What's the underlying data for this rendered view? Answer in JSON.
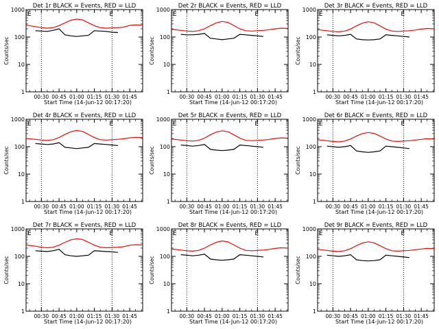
{
  "colors": {
    "events": "#000000",
    "lld": "#ff0000",
    "axis": "#000000",
    "marker": "#000000"
  },
  "common": {
    "ylabel": "Counts/sec",
    "xlabel": "Start Time (14-Jun-12 00:17:20)",
    "xticks": [
      "00:30",
      "00:45",
      "01:00",
      "01:15",
      "01:30",
      "01:45"
    ],
    "yticks": [
      "1",
      "10",
      "100",
      "1000"
    ],
    "scale": "log",
    "ylim": [
      1,
      1000
    ],
    "xlim_minutes": [
      17,
      116
    ],
    "xtick_minutes": [
      30,
      45,
      60,
      75,
      90,
      105
    ],
    "dotted_line_minutes": [
      30,
      90
    ],
    "edge_label": "E"
  },
  "chart_data": [
    {
      "type": "line",
      "title": "Det 1r BLACK = Events, RED = LLD",
      "series": [
        {
          "key": "events",
          "x": [
            25,
            30,
            35,
            40,
            45,
            50,
            55,
            60,
            65,
            70,
            75,
            80,
            85,
            90,
            95
          ],
          "y": [
            170,
            165,
            160,
            175,
            200,
            120,
            110,
            105,
            110,
            115,
            170,
            165,
            160,
            150,
            145
          ]
        },
        {
          "key": "lld",
          "x": [
            17,
            25,
            30,
            35,
            40,
            45,
            50,
            55,
            60,
            65,
            70,
            75,
            80,
            85,
            90,
            95,
            100,
            105,
            110,
            116
          ],
          "y": [
            270,
            240,
            220,
            210,
            220,
            260,
            330,
            410,
            450,
            420,
            330,
            260,
            220,
            210,
            215,
            220,
            230,
            265,
            275,
            270
          ]
        }
      ]
    },
    {
      "type": "line",
      "title": "Det 2r BLACK = Events, RED = LLD",
      "series": [
        {
          "key": "events",
          "x": [
            25,
            30,
            35,
            40,
            45,
            50,
            55,
            60,
            65,
            70,
            75,
            80,
            85,
            90,
            95
          ],
          "y": [
            125,
            120,
            120,
            125,
            135,
            90,
            85,
            80,
            85,
            90,
            125,
            120,
            115,
            110,
            105
          ]
        },
        {
          "key": "lld",
          "x": [
            17,
            25,
            30,
            35,
            40,
            45,
            50,
            55,
            60,
            65,
            70,
            75,
            80,
            85,
            90,
            95,
            100,
            105,
            110,
            116
          ],
          "y": [
            190,
            175,
            165,
            160,
            170,
            200,
            260,
            330,
            370,
            340,
            260,
            200,
            170,
            165,
            170,
            175,
            185,
            200,
            210,
            205
          ]
        }
      ]
    },
    {
      "type": "line",
      "title": "Det 3r BLACK = Events, RED = LLD",
      "series": [
        {
          "key": "events",
          "x": [
            25,
            30,
            35,
            40,
            45,
            50,
            55,
            60,
            65,
            70,
            75,
            80,
            85,
            90,
            95
          ],
          "y": [
            120,
            115,
            110,
            115,
            125,
            85,
            80,
            78,
            80,
            85,
            120,
            115,
            110,
            105,
            100
          ]
        },
        {
          "key": "lld",
          "x": [
            17,
            25,
            30,
            35,
            40,
            45,
            50,
            55,
            60,
            65,
            70,
            75,
            80,
            85,
            90,
            95,
            100,
            105,
            110,
            116
          ],
          "y": [
            185,
            170,
            160,
            155,
            165,
            195,
            255,
            320,
            360,
            330,
            255,
            195,
            165,
            160,
            165,
            170,
            180,
            195,
            205,
            200
          ]
        }
      ]
    },
    {
      "type": "line",
      "title": "Det 4r BLACK = Events, RED = LLD",
      "series": [
        {
          "key": "events",
          "x": [
            25,
            30,
            35,
            40,
            45,
            50,
            55,
            60,
            65,
            70,
            75,
            80,
            85,
            90,
            95
          ],
          "y": [
            130,
            125,
            120,
            125,
            140,
            95,
            90,
            85,
            90,
            95,
            130,
            125,
            120,
            115,
            110
          ]
        },
        {
          "key": "lld",
          "x": [
            17,
            25,
            30,
            35,
            40,
            45,
            50,
            55,
            60,
            65,
            70,
            75,
            80,
            85,
            90,
            95,
            100,
            105,
            110,
            116
          ],
          "y": [
            200,
            185,
            175,
            170,
            180,
            215,
            280,
            350,
            390,
            360,
            280,
            215,
            180,
            175,
            180,
            185,
            195,
            210,
            220,
            215
          ]
        }
      ]
    },
    {
      "type": "line",
      "title": "Det 5r BLACK = Events, RED = LLD",
      "series": [
        {
          "key": "events",
          "x": [
            25,
            30,
            35,
            40,
            45,
            50,
            55,
            60,
            65,
            70,
            75,
            80,
            85,
            90,
            95
          ],
          "y": [
            115,
            110,
            105,
            110,
            120,
            80,
            75,
            72,
            75,
            80,
            115,
            110,
            105,
            100,
            95
          ]
        },
        {
          "key": "lld",
          "x": [
            17,
            25,
            30,
            35,
            40,
            45,
            50,
            55,
            60,
            65,
            70,
            75,
            80,
            85,
            90,
            95,
            100,
            105,
            110,
            116
          ],
          "y": [
            190,
            175,
            165,
            160,
            170,
            205,
            270,
            340,
            380,
            350,
            270,
            205,
            170,
            165,
            170,
            175,
            185,
            200,
            210,
            205
          ]
        }
      ]
    },
    {
      "type": "line",
      "title": "Det 6r BLACK = Events, RED = LLD",
      "series": [
        {
          "key": "events",
          "x": [
            25,
            30,
            35,
            40,
            45,
            50,
            55,
            60,
            65,
            70,
            75,
            80,
            85,
            90,
            95
          ],
          "y": [
            105,
            100,
            95,
            100,
            110,
            70,
            65,
            62,
            65,
            70,
            105,
            100,
            95,
            90,
            85
          ]
        },
        {
          "key": "lld",
          "x": [
            17,
            25,
            30,
            35,
            40,
            45,
            50,
            55,
            60,
            65,
            70,
            75,
            80,
            85,
            90,
            95,
            100,
            105,
            110,
            116
          ],
          "y": [
            180,
            165,
            155,
            150,
            160,
            190,
            245,
            300,
            330,
            305,
            245,
            190,
            160,
            155,
            160,
            165,
            175,
            185,
            195,
            190
          ]
        }
      ]
    },
    {
      "type": "line",
      "title": "Det 7r BLACK = Events, RED = LLD",
      "series": [
        {
          "key": "events",
          "x": [
            25,
            30,
            35,
            40,
            45,
            50,
            55,
            60,
            65,
            70,
            75,
            80,
            85,
            90,
            95
          ],
          "y": [
            160,
            155,
            150,
            160,
            180,
            115,
            105,
            100,
            105,
            110,
            160,
            155,
            150,
            145,
            140
          ]
        },
        {
          "key": "lld",
          "x": [
            17,
            25,
            30,
            35,
            40,
            45,
            50,
            55,
            60,
            65,
            70,
            75,
            80,
            85,
            90,
            95,
            100,
            105,
            110,
            116
          ],
          "y": [
            260,
            235,
            215,
            205,
            215,
            255,
            325,
            400,
            440,
            410,
            325,
            255,
            215,
            205,
            210,
            215,
            225,
            255,
            265,
            260
          ]
        }
      ]
    },
    {
      "type": "line",
      "title": "Det 8r BLACK = Events, RED = LLD",
      "series": [
        {
          "key": "events",
          "x": [
            25,
            30,
            35,
            40,
            45,
            50,
            55,
            60,
            65,
            70,
            75,
            80,
            85,
            90,
            95
          ],
          "y": [
            115,
            110,
            105,
            110,
            120,
            80,
            75,
            72,
            75,
            80,
            115,
            110,
            105,
            100,
            95
          ]
        },
        {
          "key": "lld",
          "x": [
            17,
            25,
            30,
            35,
            40,
            45,
            50,
            55,
            60,
            65,
            70,
            75,
            80,
            85,
            90,
            95,
            100,
            105,
            110,
            116
          ],
          "y": [
            185,
            170,
            160,
            155,
            165,
            200,
            260,
            325,
            365,
            335,
            260,
            200,
            165,
            160,
            165,
            170,
            180,
            195,
            205,
            200
          ]
        }
      ]
    },
    {
      "type": "line",
      "title": "Det 9r BLACK = Events, RED = LLD",
      "series": [
        {
          "key": "events",
          "x": [
            25,
            30,
            35,
            40,
            45,
            50,
            55,
            60,
            65,
            70,
            75,
            80,
            85,
            90,
            95
          ],
          "y": [
            110,
            105,
            100,
            105,
            115,
            75,
            70,
            68,
            70,
            75,
            110,
            105,
            100,
            95,
            90
          ]
        },
        {
          "key": "lld",
          "x": [
            17,
            25,
            30,
            35,
            40,
            45,
            50,
            55,
            60,
            65,
            70,
            75,
            80,
            85,
            90,
            95,
            100,
            105,
            110,
            116
          ],
          "y": [
            180,
            165,
            155,
            150,
            160,
            190,
            245,
            305,
            340,
            310,
            245,
            190,
            160,
            155,
            160,
            165,
            175,
            185,
            195,
            190
          ]
        }
      ]
    }
  ]
}
